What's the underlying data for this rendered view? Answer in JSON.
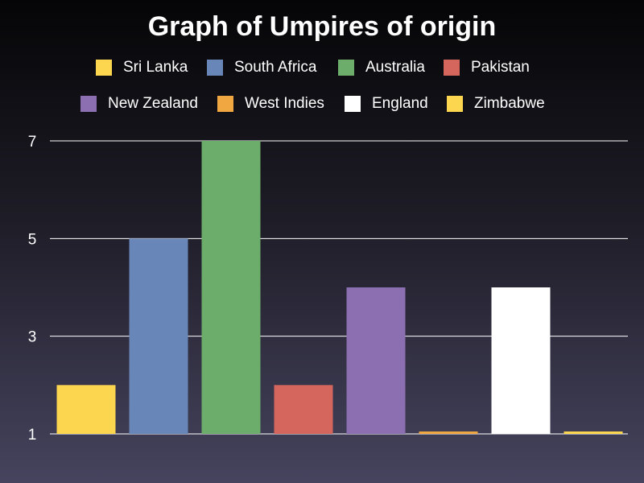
{
  "chart_data": {
    "type": "bar",
    "title": "Graph of Umpires of origin",
    "xlabel": "",
    "ylabel": "",
    "ylim": [
      1,
      7
    ],
    "yticks": [
      1,
      3,
      5,
      7
    ],
    "grid": true,
    "legend_position": "top",
    "categories": [
      "Sri Lanka",
      "South Africa",
      "Australia",
      "Pakistan",
      "New Zealand",
      "West Indies",
      "England",
      "Zimbabwe"
    ],
    "values": [
      2,
      5,
      7,
      2,
      4,
      1,
      4,
      1
    ],
    "colors": [
      "#fcd64e",
      "#6886b8",
      "#6dad6b",
      "#d4665e",
      "#8b6fb0",
      "#f0a742",
      "#ffffff",
      "#fcd64e"
    ]
  }
}
